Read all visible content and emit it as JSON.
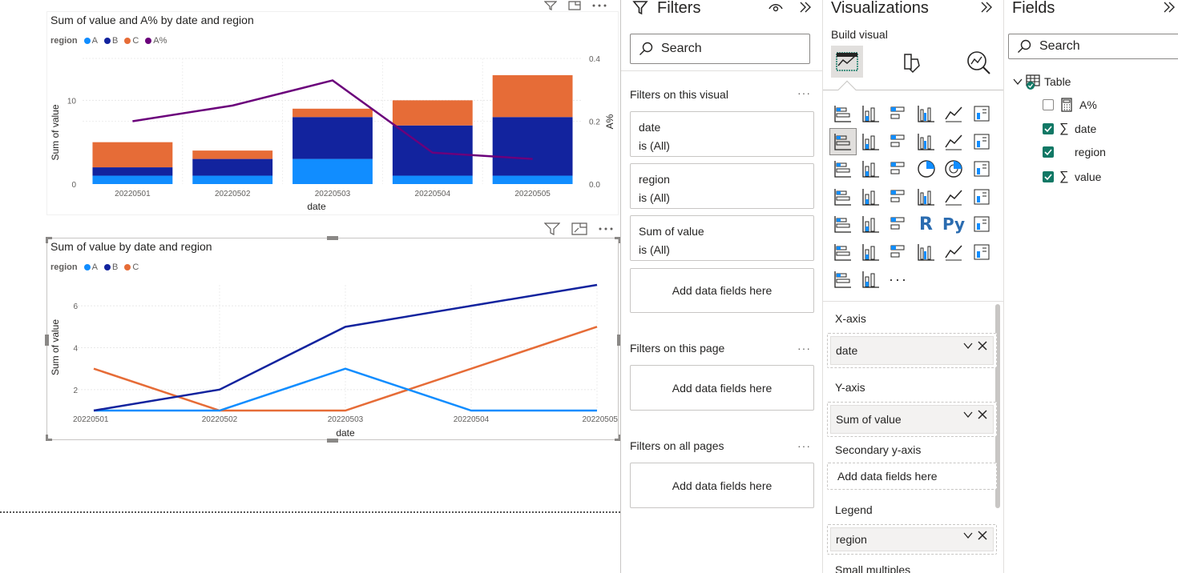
{
  "colors": {
    "A": "#118dff",
    "B": "#12239e",
    "C": "#e66c37",
    "Apct": "#6b007b",
    "check": "#117865"
  },
  "chart1": {
    "title": "Sum of value and A% by date and region",
    "legend_title": "region",
    "legend": [
      "A",
      "B",
      "C",
      "A%"
    ],
    "xlabel": "date",
    "ylabel": "Sum of value",
    "ylabel2": "A%",
    "y_ticks": [
      "0",
      "10"
    ],
    "y2_ticks": [
      "0.0",
      "0.2",
      "0.4"
    ]
  },
  "chart2": {
    "title": "Sum of value by date and region",
    "legend_title": "region",
    "legend": [
      "A",
      "B",
      "C"
    ],
    "xlabel": "date",
    "ylabel": "Sum of value",
    "y_ticks": [
      "2",
      "4",
      "6"
    ]
  },
  "chart_data": [
    {
      "type": "bar",
      "stacked": true,
      "title": "Sum of value and A% by date and region",
      "categories": [
        "20220501",
        "20220502",
        "20220503",
        "20220504",
        "20220505"
      ],
      "series": [
        {
          "name": "A",
          "values": [
            1,
            1,
            3,
            1,
            1
          ]
        },
        {
          "name": "B",
          "values": [
            1,
            2,
            5,
            6,
            7
          ]
        },
        {
          "name": "C",
          "values": [
            3,
            1,
            1,
            3,
            5
          ]
        }
      ],
      "line_series": {
        "name": "A%",
        "axis": "secondary",
        "values": [
          0.2,
          0.25,
          0.33,
          0.1,
          0.08
        ]
      },
      "xlabel": "date",
      "ylabel": "Sum of value",
      "y2label": "A%",
      "ylim": [
        0,
        15
      ],
      "y2lim": [
        0,
        0.4
      ],
      "legend_position": "top-left"
    },
    {
      "type": "line",
      "title": "Sum of value by date and region",
      "x": [
        "20220501",
        "20220502",
        "20220503",
        "20220504",
        "20220505"
      ],
      "series": [
        {
          "name": "A",
          "values": [
            1,
            1,
            3,
            1,
            1
          ]
        },
        {
          "name": "B",
          "values": [
            1,
            2,
            5,
            6,
            7
          ]
        },
        {
          "name": "C",
          "values": [
            3,
            1,
            1,
            3,
            5
          ]
        }
      ],
      "xlabel": "date",
      "ylabel": "Sum of value",
      "ylim": [
        1,
        7
      ],
      "legend_position": "top-left"
    }
  ],
  "filters": {
    "title": "Filters",
    "search_placeholder": "Search",
    "on_visual_label": "Filters on this visual",
    "cards": [
      {
        "field": "date",
        "state": "is (All)"
      },
      {
        "field": "region",
        "state": "is (All)"
      },
      {
        "field": "Sum of value",
        "state": "is (All)"
      }
    ],
    "add_label": "Add data fields here",
    "on_page_label": "Filters on this page",
    "all_pages_label": "Filters on all pages"
  },
  "viz": {
    "title": "Visualizations",
    "build_label": "Build visual",
    "xaxis_label": "X-axis",
    "xaxis_value": "date",
    "yaxis_label": "Y-axis",
    "yaxis_value": "Sum of value",
    "secondary_label": "Secondary y-axis",
    "secondary_value": "Add data fields here",
    "legend_label": "Legend",
    "legend_value": "region",
    "small_multiples_label": "Small multiples"
  },
  "fields": {
    "title": "Fields",
    "search_placeholder": "Search",
    "table_name": "Table",
    "items": [
      {
        "name": "A%",
        "checked": false,
        "icon": "calculator-icon"
      },
      {
        "name": "date",
        "checked": true,
        "icon": "sigma-icon"
      },
      {
        "name": "region",
        "checked": true,
        "icon": ""
      },
      {
        "name": "value",
        "checked": true,
        "icon": "sigma-icon"
      }
    ]
  }
}
